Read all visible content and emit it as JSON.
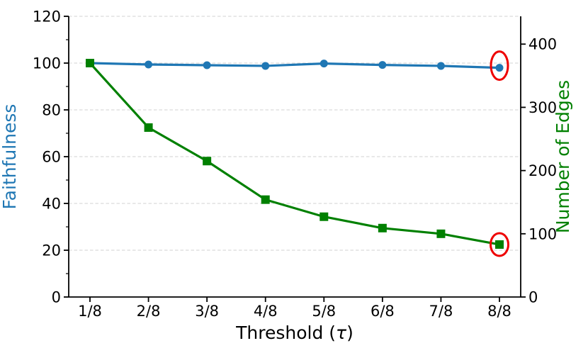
{
  "chart_data": {
    "type": "line",
    "title": "",
    "xlabel": "Threshold (τ)",
    "xlabel_parts": {
      "prefix": "Threshold (",
      "tau": "τ",
      "suffix": ")"
    },
    "x_categories": [
      "1/8",
      "2/8",
      "3/8",
      "4/8",
      "5/8",
      "6/8",
      "7/8",
      "8/8"
    ],
    "left_axis": {
      "label": "Faithfulness",
      "color": "#1f77b4",
      "ylim": [
        0,
        120
      ],
      "ticks": [
        0,
        20,
        40,
        60,
        80,
        100,
        120
      ]
    },
    "right_axis": {
      "label": "Number of Edges",
      "color": "#008000",
      "ylim": [
        0,
        444
      ],
      "ticks": [
        0,
        100,
        200,
        300,
        400
      ]
    },
    "series": [
      {
        "name": "Faithfulness",
        "axis": "left",
        "color": "#1f77b4",
        "marker": "circle",
        "values": [
          100,
          99.4,
          99.1,
          98.8,
          99.8,
          99.2,
          98.8,
          98.0
        ]
      },
      {
        "name": "Number of Edges",
        "axis": "right",
        "color": "#008000",
        "marker": "square",
        "values": [
          370,
          268,
          215,
          154,
          127,
          109,
          100,
          83
        ]
      }
    ],
    "annotations": [
      {
        "type": "ellipse",
        "series": "Faithfulness",
        "x": "8/8",
        "color": "#ee0000"
      },
      {
        "type": "ellipse",
        "series": "Number of Edges",
        "x": "8/8",
        "color": "#ee0000"
      }
    ],
    "grid": {
      "axis": "y",
      "style": "dashed",
      "color": "#d0d0d0"
    },
    "legend": "none"
  }
}
